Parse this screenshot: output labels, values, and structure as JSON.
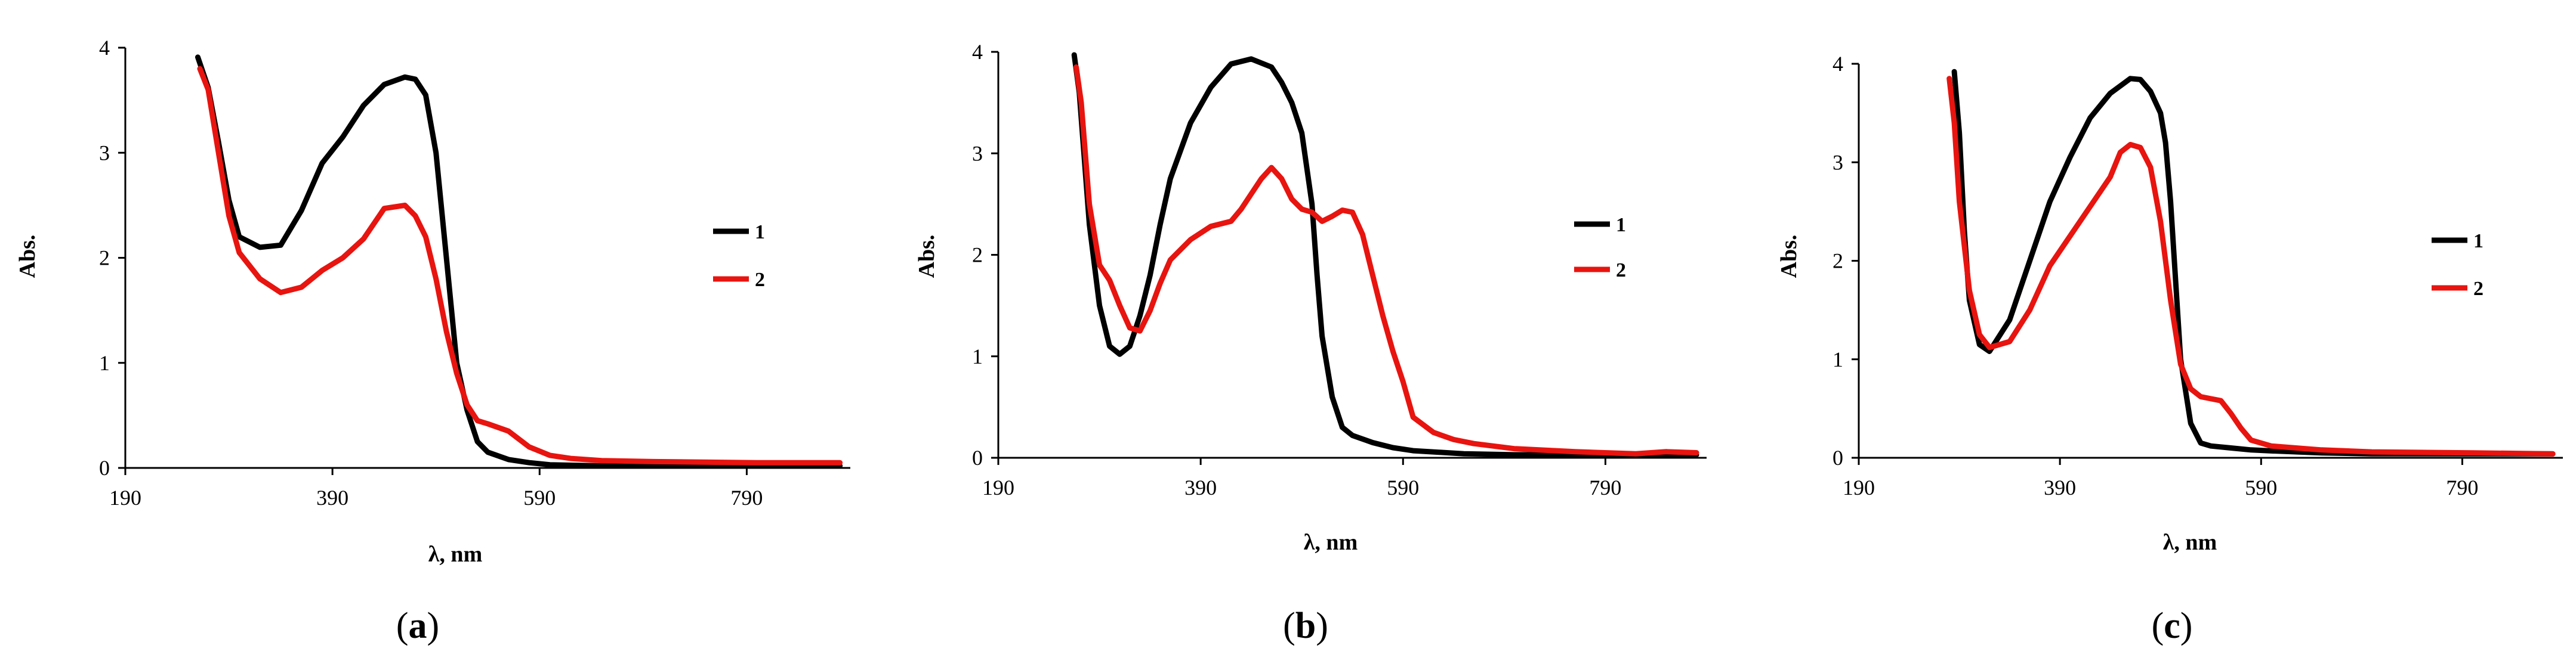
{
  "chart_data": [
    {
      "type": "line",
      "panel": "a",
      "caption": "a",
      "xlabel": "λ, nm",
      "ylabel": "Abs.",
      "xlim": [
        190,
        890
      ],
      "ylim": [
        0,
        4
      ],
      "xticks": [
        190,
        390,
        590,
        790
      ],
      "yticks": [
        0,
        1,
        2,
        3,
        4
      ],
      "legend_position": "right",
      "series": [
        {
          "name": "1",
          "color": "#000000",
          "x": [
            260,
            270,
            280,
            290,
            300,
            320,
            340,
            360,
            380,
            400,
            420,
            440,
            460,
            470,
            480,
            490,
            500,
            510,
            520,
            530,
            540,
            560,
            580,
            600,
            650,
            700,
            800,
            880
          ],
          "y": [
            3.91,
            3.62,
            3.1,
            2.55,
            2.2,
            2.1,
            2.12,
            2.45,
            2.9,
            3.15,
            3.45,
            3.65,
            3.72,
            3.7,
            3.55,
            3.0,
            2.0,
            1.0,
            0.55,
            0.25,
            0.15,
            0.08,
            0.05,
            0.03,
            0.02,
            0.02,
            0.02,
            0.02
          ]
        },
        {
          "name": "2",
          "color": "#e8140f",
          "x": [
            262,
            270,
            280,
            290,
            300,
            320,
            340,
            360,
            380,
            400,
            420,
            440,
            460,
            470,
            480,
            490,
            500,
            510,
            520,
            530,
            540,
            560,
            580,
            600,
            620,
            650,
            700,
            800,
            880
          ],
          "y": [
            3.8,
            3.6,
            3.0,
            2.4,
            2.05,
            1.8,
            1.67,
            1.72,
            1.88,
            2.0,
            2.18,
            2.47,
            2.5,
            2.4,
            2.2,
            1.8,
            1.3,
            0.9,
            0.6,
            0.45,
            0.42,
            0.35,
            0.2,
            0.12,
            0.09,
            0.07,
            0.06,
            0.05,
            0.05
          ]
        }
      ]
    },
    {
      "type": "line",
      "panel": "b",
      "caption": "b",
      "xlabel": "λ, nm",
      "ylabel": "Abs.",
      "xlim": [
        190,
        890
      ],
      "ylim": [
        0,
        4
      ],
      "xticks": [
        190,
        390,
        590,
        790
      ],
      "yticks": [
        0,
        1,
        2,
        3,
        4
      ],
      "legend_position": "right",
      "series": [
        {
          "name": "1",
          "color": "#000000",
          "x": [
            265,
            270,
            280,
            290,
            300,
            310,
            320,
            330,
            340,
            350,
            360,
            380,
            400,
            420,
            440,
            460,
            470,
            480,
            490,
            500,
            505,
            510,
            520,
            530,
            540,
            560,
            580,
            600,
            650,
            700,
            800,
            880
          ],
          "y": [
            3.97,
            3.6,
            2.3,
            1.5,
            1.1,
            1.02,
            1.1,
            1.4,
            1.8,
            2.3,
            2.75,
            3.3,
            3.65,
            3.88,
            3.93,
            3.85,
            3.7,
            3.5,
            3.2,
            2.5,
            1.8,
            1.2,
            0.6,
            0.3,
            0.22,
            0.15,
            0.1,
            0.07,
            0.04,
            0.03,
            0.03,
            0.03
          ]
        },
        {
          "name": "2",
          "color": "#e8140f",
          "x": [
            267,
            272,
            280,
            290,
            300,
            310,
            320,
            330,
            340,
            350,
            360,
            380,
            400,
            420,
            430,
            440,
            450,
            460,
            470,
            480,
            490,
            500,
            510,
            520,
            530,
            540,
            550,
            560,
            570,
            580,
            590,
            600,
            620,
            640,
            660,
            700,
            760,
            820,
            850,
            880
          ],
          "y": [
            3.85,
            3.5,
            2.5,
            1.9,
            1.75,
            1.5,
            1.28,
            1.25,
            1.45,
            1.72,
            1.95,
            2.15,
            2.28,
            2.33,
            2.45,
            2.6,
            2.75,
            2.86,
            2.75,
            2.55,
            2.45,
            2.42,
            2.33,
            2.38,
            2.44,
            2.42,
            2.2,
            1.8,
            1.4,
            1.05,
            0.75,
            0.4,
            0.25,
            0.18,
            0.14,
            0.09,
            0.06,
            0.04,
            0.06,
            0.05
          ]
        }
      ]
    },
    {
      "type": "line",
      "panel": "c",
      "caption": "c",
      "xlabel": "λ, nm",
      "ylabel": "Abs.",
      "xlim": [
        190,
        890
      ],
      "ylim": [
        0,
        4
      ],
      "xticks": [
        190,
        390,
        590,
        790
      ],
      "yticks": [
        0,
        1,
        2,
        3,
        4
      ],
      "legend_position": "right",
      "series": [
        {
          "name": "1",
          "color": "#000000",
          "x": [
            285,
            290,
            295,
            300,
            310,
            320,
            340,
            360,
            380,
            400,
            420,
            440,
            460,
            470,
            480,
            490,
            495,
            500,
            505,
            510,
            520,
            530,
            540,
            560,
            580,
            600,
            650,
            700,
            800,
            880
          ],
          "y": [
            3.92,
            3.3,
            2.3,
            1.6,
            1.15,
            1.08,
            1.4,
            2.0,
            2.6,
            3.05,
            3.45,
            3.7,
            3.85,
            3.84,
            3.72,
            3.5,
            3.2,
            2.6,
            1.8,
            1.0,
            0.35,
            0.15,
            0.12,
            0.1,
            0.08,
            0.07,
            0.05,
            0.04,
            0.04,
            0.04
          ]
        },
        {
          "name": "2",
          "color": "#e8140f",
          "x": [
            280,
            285,
            290,
            300,
            310,
            320,
            340,
            360,
            380,
            400,
            420,
            440,
            450,
            460,
            470,
            480,
            490,
            500,
            510,
            520,
            530,
            540,
            550,
            560,
            570,
            580,
            600,
            650,
            700,
            800,
            880
          ],
          "y": [
            3.85,
            3.4,
            2.6,
            1.7,
            1.25,
            1.12,
            1.18,
            1.5,
            1.95,
            2.25,
            2.55,
            2.85,
            3.1,
            3.18,
            3.15,
            2.95,
            2.4,
            1.6,
            0.95,
            0.7,
            0.62,
            0.6,
            0.58,
            0.45,
            0.3,
            0.18,
            0.12,
            0.08,
            0.06,
            0.05,
            0.04
          ]
        }
      ]
    }
  ]
}
